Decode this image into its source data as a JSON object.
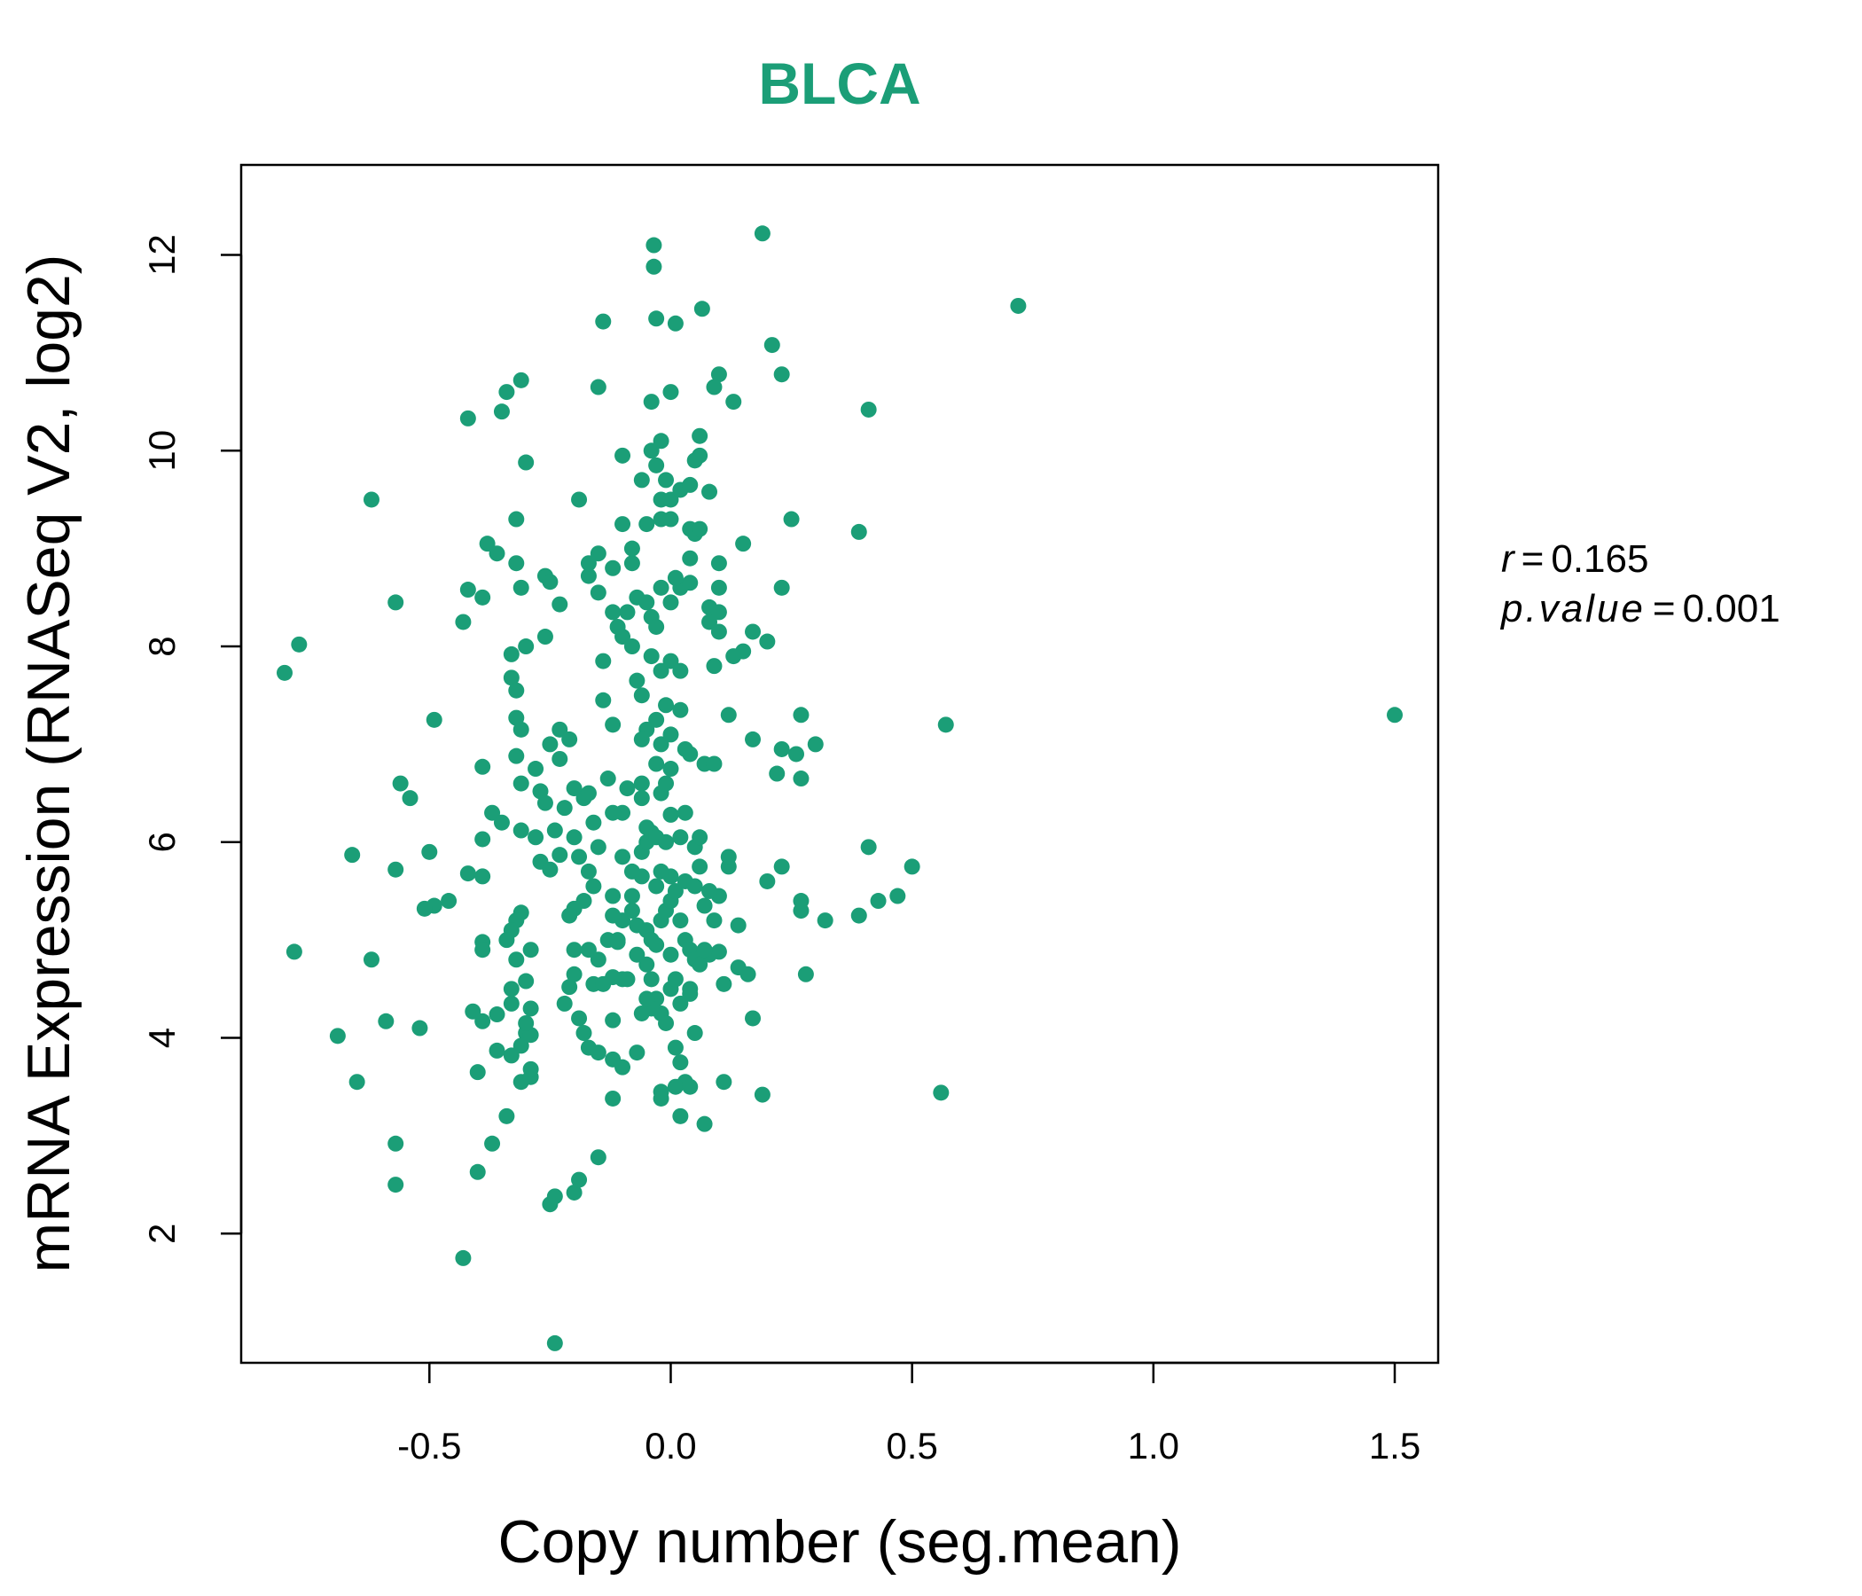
{
  "chart_data": {
    "type": "scatter",
    "title": "BLCA",
    "xlabel": "Copy number (seg.mean)",
    "ylabel": "mRNA Expression (RNASeq V2, log2)",
    "xlim": [
      -0.89,
      1.59
    ],
    "ylim": [
      0.68,
      12.92
    ],
    "xticks": [
      -0.5,
      0.0,
      0.5,
      1.0,
      1.5
    ],
    "xtick_labels": [
      "-0.5",
      "0.0",
      "0.5",
      "1.0",
      "1.5"
    ],
    "yticks": [
      2,
      4,
      6,
      8,
      10,
      12
    ],
    "ytick_labels": [
      "2",
      "4",
      "6",
      "8",
      "10",
      "12"
    ],
    "grid": false,
    "legend": "none",
    "color": "#1b9e77",
    "annotations": {
      "r_label": "r",
      "r_value": "0.165",
      "p_label": "p.value",
      "p_value": "0.001",
      "eq": "="
    },
    "points": [
      [
        1.5,
        7.3
      ],
      [
        0.72,
        11.48
      ],
      [
        0.57,
        7.2
      ],
      [
        0.56,
        3.44
      ],
      [
        0.41,
        10.42
      ],
      [
        0.39,
        9.17
      ],
      [
        0.41,
        5.95
      ],
      [
        0.39,
        5.25
      ],
      [
        0.43,
        5.4
      ],
      [
        0.47,
        5.45
      ],
      [
        0.5,
        5.75
      ],
      [
        0.32,
        5.2
      ],
      [
        0.28,
        4.65
      ],
      [
        0.27,
        5.3
      ],
      [
        0.27,
        5.4
      ],
      [
        0.23,
        5.75
      ],
      [
        0.2,
        5.6
      ],
      [
        0.27,
        6.65
      ],
      [
        0.22,
        6.7
      ],
      [
        0.3,
        7
      ],
      [
        0.26,
        6.9
      ],
      [
        0.23,
        6.95
      ],
      [
        0.27,
        7.3
      ],
      [
        0.17,
        7.05
      ],
      [
        0.2,
        8.05
      ],
      [
        0.17,
        8.15
      ],
      [
        0.15,
        7.95
      ],
      [
        0.13,
        7.9
      ],
      [
        0.23,
        8.6
      ],
      [
        0.25,
        9.3
      ],
      [
        0.15,
        9.05
      ],
      [
        0.21,
        11.08
      ],
      [
        0.23,
        10.78
      ],
      [
        0.19,
        12.22
      ],
      [
        0.1,
        10.78
      ],
      [
        0.09,
        10.65
      ],
      [
        0.13,
        10.5
      ],
      [
        0.065,
        11.45
      ],
      [
        0.01,
        11.3
      ],
      [
        -0.03,
        11.35
      ],
      [
        -0.035,
        12.1
      ],
      [
        -0.035,
        11.88
      ],
      [
        -0.14,
        11.32
      ],
      [
        -0.15,
        10.65
      ],
      [
        -0.04,
        10.5
      ],
      [
        0.0,
        10.6
      ],
      [
        -0.42,
        10.33
      ],
      [
        -0.35,
        10.4
      ],
      [
        -0.34,
        10.6
      ],
      [
        -0.31,
        10.72
      ],
      [
        -0.3,
        9.88
      ],
      [
        -0.62,
        9.5
      ],
      [
        -0.77,
        8.02
      ],
      [
        -0.8,
        7.73
      ],
      [
        -0.57,
        8.45
      ],
      [
        -0.49,
        7.25
      ],
      [
        -0.43,
        8.25
      ],
      [
        -0.42,
        8.58
      ],
      [
        -0.39,
        8.5
      ],
      [
        -0.38,
        9.05
      ],
      [
        -0.36,
        8.95
      ],
      [
        -0.32,
        9.3
      ],
      [
        -0.32,
        8.85
      ],
      [
        -0.31,
        8.6
      ],
      [
        -0.26,
        8.72
      ],
      [
        -0.25,
        8.66
      ],
      [
        -0.23,
        8.43
      ],
      [
        -0.26,
        8.1
      ],
      [
        -0.3,
        8.0
      ],
      [
        -0.33,
        7.92
      ],
      [
        -0.33,
        7.68
      ],
      [
        -0.32,
        7.55
      ],
      [
        -0.32,
        7.27
      ],
      [
        -0.31,
        7.15
      ],
      [
        -0.25,
        7.0
      ],
      [
        -0.23,
        7.15
      ],
      [
        -0.21,
        7.05
      ],
      [
        -0.23,
        6.85
      ],
      [
        -0.28,
        6.75
      ],
      [
        -0.32,
        6.88
      ],
      [
        -0.39,
        6.77
      ],
      [
        -0.56,
        6.6
      ],
      [
        -0.54,
        6.45
      ],
      [
        -0.37,
        6.3
      ],
      [
        -0.35,
        6.2
      ],
      [
        -0.31,
        6.6
      ],
      [
        -0.27,
        6.52
      ],
      [
        -0.26,
        6.4
      ],
      [
        -0.22,
        6.35
      ],
      [
        -0.2,
        6.55
      ],
      [
        -0.18,
        6.45
      ],
      [
        -0.17,
        6.5
      ],
      [
        -0.24,
        6.12
      ],
      [
        -0.28,
        6.05
      ],
      [
        -0.31,
        6.12
      ],
      [
        -0.39,
        6.03
      ],
      [
        -0.66,
        5.87
      ],
      [
        -0.5,
        5.9
      ],
      [
        -0.57,
        5.72
      ],
      [
        -0.42,
        5.68
      ],
      [
        -0.39,
        5.65
      ],
      [
        -0.46,
        5.4
      ],
      [
        -0.49,
        5.35
      ],
      [
        -0.51,
        5.32
      ],
      [
        -0.27,
        5.8
      ],
      [
        -0.25,
        5.72
      ],
      [
        -0.23,
        5.87
      ],
      [
        -0.19,
        5.85
      ],
      [
        -0.17,
        5.7
      ],
      [
        -0.16,
        5.55
      ],
      [
        -0.15,
        5.95
      ],
      [
        -0.18,
        5.4
      ],
      [
        -0.2,
        5.32
      ],
      [
        -0.21,
        5.25
      ],
      [
        -0.31,
        5.28
      ],
      [
        -0.32,
        5.2
      ],
      [
        -0.33,
        5.1
      ],
      [
        -0.34,
        5.0
      ],
      [
        -0.39,
        4.98
      ],
      [
        -0.39,
        4.9
      ],
      [
        -0.29,
        4.9
      ],
      [
        -0.32,
        4.8
      ],
      [
        -0.78,
        4.88
      ],
      [
        -0.62,
        4.8
      ],
      [
        -0.59,
        4.17
      ],
      [
        -0.69,
        4.02
      ],
      [
        -0.52,
        4.1
      ],
      [
        -0.65,
        3.55
      ],
      [
        -0.57,
        2.92
      ],
      [
        -0.57,
        2.5
      ],
      [
        -0.4,
        2.63
      ],
      [
        -0.43,
        1.75
      ],
      [
        -0.37,
        2.92
      ],
      [
        -0.34,
        3.2
      ],
      [
        -0.4,
        3.65
      ],
      [
        -0.31,
        3.55
      ],
      [
        -0.29,
        3.6
      ],
      [
        -0.29,
        3.68
      ],
      [
        -0.33,
        3.82
      ],
      [
        -0.36,
        3.87
      ],
      [
        -0.31,
        3.92
      ],
      [
        -0.3,
        4.05
      ],
      [
        -0.29,
        4.03
      ],
      [
        -0.3,
        4.15
      ],
      [
        -0.29,
        4.3
      ],
      [
        -0.36,
        4.24
      ],
      [
        -0.39,
        4.17
      ],
      [
        -0.41,
        4.27
      ],
      [
        -0.33,
        4.35
      ],
      [
        -0.33,
        4.5
      ],
      [
        -0.3,
        4.58
      ],
      [
        -0.25,
        2.3
      ],
      [
        -0.24,
        2.38
      ],
      [
        -0.2,
        2.42
      ],
      [
        -0.19,
        2.55
      ],
      [
        -0.15,
        2.78
      ],
      [
        -0.24,
        0.88
      ],
      [
        -0.22,
        4.35
      ],
      [
        -0.21,
        4.52
      ],
      [
        -0.2,
        4.65
      ],
      [
        -0.2,
        4.9
      ],
      [
        -0.19,
        4.2
      ],
      [
        -0.18,
        4.05
      ],
      [
        -0.17,
        3.9
      ],
      [
        -0.15,
        3.85
      ],
      [
        -0.12,
        3.78
      ],
      [
        -0.12,
        3.38
      ],
      [
        -0.1,
        3.7
      ],
      [
        -0.07,
        3.85
      ],
      [
        -0.16,
        4.55
      ],
      [
        -0.15,
        4.8
      ],
      [
        -0.17,
        4.9
      ],
      [
        -0.12,
        4.62
      ],
      [
        -0.11,
        4.98
      ],
      [
        -0.1,
        5.2
      ],
      [
        -0.08,
        5.3
      ],
      [
        -0.12,
        5.25
      ],
      [
        -0.13,
        5.0
      ],
      [
        -0.14,
        4.55
      ],
      [
        -0.12,
        4.18
      ],
      [
        -0.1,
        4.6
      ],
      [
        -0.09,
        4.6
      ],
      [
        -0.07,
        5.15
      ],
      [
        -0.05,
        5.1
      ],
      [
        -0.04,
        5.0
      ],
      [
        -0.03,
        4.95
      ],
      [
        -0.02,
        5.2
      ],
      [
        -0.01,
        5.3
      ],
      [
        0,
        5.4
      ],
      [
        0.01,
        5.5
      ],
      [
        0.02,
        5.2
      ],
      [
        0.03,
        5.0
      ],
      [
        0.04,
        4.9
      ],
      [
        0.05,
        4.8
      ],
      [
        0.06,
        4.75
      ],
      [
        0.08,
        4.85
      ],
      [
        -0.05,
        4.75
      ],
      [
        -0.04,
        4.6
      ],
      [
        -0.03,
        4.4
      ],
      [
        -0.02,
        4.25
      ],
      [
        -0.04,
        4.3
      ],
      [
        -0.06,
        4.25
      ],
      [
        -0.01,
        4.15
      ],
      [
        0.0,
        4.5
      ],
      [
        0.01,
        4.6
      ],
      [
        0.02,
        4.35
      ],
      [
        0.04,
        4.45
      ],
      [
        0.04,
        4.5
      ],
      [
        0.05,
        4.05
      ],
      [
        0.01,
        3.9
      ],
      [
        0.02,
        3.75
      ],
      [
        0.03,
        3.55
      ],
      [
        0.01,
        3.5
      ],
      [
        0.04,
        3.5
      ],
      [
        -0.02,
        3.45
      ],
      [
        -0.02,
        3.38
      ],
      [
        0.02,
        3.2
      ],
      [
        0.07,
        3.12
      ],
      [
        0.11,
        3.55
      ],
      [
        0.11,
        4.55
      ],
      [
        0.14,
        4.72
      ],
      [
        0.16,
        4.65
      ],
      [
        0.17,
        4.2
      ],
      [
        0.19,
        3.42
      ],
      [
        0.1,
        4.88
      ],
      [
        0.09,
        5.2
      ],
      [
        0.07,
        5.35
      ],
      [
        0.1,
        5.45
      ],
      [
        0.14,
        5.15
      ],
      [
        0.12,
        5.75
      ],
      [
        0.12,
        5.85
      ],
      [
        0.06,
        5.75
      ],
      [
        0.05,
        5.95
      ],
      [
        0.06,
        6.05
      ],
      [
        0.03,
        5.6
      ],
      [
        0.0,
        5.65
      ],
      [
        -0.03,
        5.55
      ],
      [
        -0.06,
        5.65
      ],
      [
        -0.08,
        5.7
      ],
      [
        -0.1,
        5.85
      ],
      [
        -0.06,
        5.9
      ],
      [
        -0.05,
        6.0
      ],
      [
        -0.04,
        6.1
      ],
      [
        -0.05,
        6.15
      ],
      [
        -0.03,
        6.05
      ],
      [
        -0.01,
        6.0
      ],
      [
        0.02,
        6.05
      ],
      [
        0.0,
        6.28
      ],
      [
        0.03,
        6.3
      ],
      [
        -0.02,
        6.5
      ],
      [
        -0.01,
        6.6
      ],
      [
        0.0,
        6.75
      ],
      [
        -0.03,
        6.8
      ],
      [
        -0.06,
        6.6
      ],
      [
        -0.09,
        6.55
      ],
      [
        -0.1,
        6.3
      ],
      [
        -0.12,
        6.3
      ],
      [
        -0.13,
        6.65
      ],
      [
        -0.06,
        6.45
      ],
      [
        -0.02,
        7.0
      ],
      [
        0.0,
        7.1
      ],
      [
        0.03,
        6.95
      ],
      [
        0.04,
        6.9
      ],
      [
        0.07,
        6.8
      ],
      [
        0.09,
        6.8
      ],
      [
        0.12,
        7.3
      ],
      [
        -0.03,
        7.25
      ],
      [
        -0.05,
        7.15
      ],
      [
        -0.06,
        7.05
      ],
      [
        -0.01,
        7.4
      ],
      [
        0.02,
        7.35
      ],
      [
        -0.02,
        7.75
      ],
      [
        0.0,
        7.85
      ],
      [
        0.02,
        7.75
      ],
      [
        -0.04,
        7.9
      ],
      [
        -0.07,
        7.65
      ],
      [
        -0.06,
        7.5
      ],
      [
        -0.12,
        7.2
      ],
      [
        -0.14,
        7.45
      ],
      [
        -0.14,
        7.85
      ],
      [
        -0.08,
        8.0
      ],
      [
        -0.1,
        8.1
      ],
      [
        -0.11,
        8.2
      ],
      [
        -0.12,
        8.35
      ],
      [
        -0.09,
        8.35
      ],
      [
        -0.07,
        8.5
      ],
      [
        -0.05,
        8.45
      ],
      [
        -0.04,
        8.3
      ],
      [
        -0.03,
        8.2
      ],
      [
        0.0,
        8.45
      ],
      [
        0.02,
        8.6
      ],
      [
        0.04,
        8.65
      ],
      [
        0.08,
        8.25
      ],
      [
        0.08,
        8.4
      ],
      [
        0.1,
        8.35
      ],
      [
        0.09,
        7.8
      ],
      [
        0.1,
        8.15
      ],
      [
        0.1,
        8.6
      ],
      [
        0.1,
        8.85
      ],
      [
        0.04,
        8.9
      ],
      [
        0.01,
        8.7
      ],
      [
        -0.02,
        8.6
      ],
      [
        -0.15,
        8.55
      ],
      [
        -0.17,
        8.72
      ],
      [
        -0.17,
        8.85
      ],
      [
        -0.15,
        8.95
      ],
      [
        -0.12,
        8.8
      ],
      [
        -0.08,
        8.85
      ],
      [
        -0.08,
        9.0
      ],
      [
        -0.05,
        9.25
      ],
      [
        -0.1,
        9.25
      ],
      [
        -0.19,
        9.5
      ],
      [
        -0.02,
        9.3
      ],
      [
        0.04,
        9.2
      ],
      [
        0.05,
        9.15
      ],
      [
        0.06,
        9.2
      ],
      [
        -0.02,
        9.5
      ],
      [
        0.0,
        9.5
      ],
      [
        0.02,
        9.6
      ],
      [
        0.08,
        9.58
      ],
      [
        0.04,
        9.65
      ],
      [
        -0.06,
        9.7
      ],
      [
        0.06,
        9.95
      ],
      [
        0.05,
        9.9
      ],
      [
        -0.1,
        9.95
      ],
      [
        -0.04,
        10.0
      ],
      [
        -0.03,
        9.85
      ],
      [
        -0.02,
        10.1
      ],
      [
        0.06,
        10.15
      ],
      [
        -0.01,
        9.7
      ],
      [
        0.0,
        9.3
      ],
      [
        -0.2,
        6.05
      ],
      [
        -0.16,
        6.2
      ],
      [
        -0.12,
        5.45
      ],
      [
        -0.11,
        5.0
      ],
      [
        -0.07,
        4.85
      ],
      [
        -0.05,
        4.4
      ],
      [
        0.0,
        4.85
      ],
      [
        0.07,
        4.9
      ],
      [
        0.05,
        5.55
      ],
      [
        0.08,
        5.5
      ],
      [
        -0.02,
        5.7
      ],
      [
        -0.08,
        5.45
      ]
    ]
  }
}
